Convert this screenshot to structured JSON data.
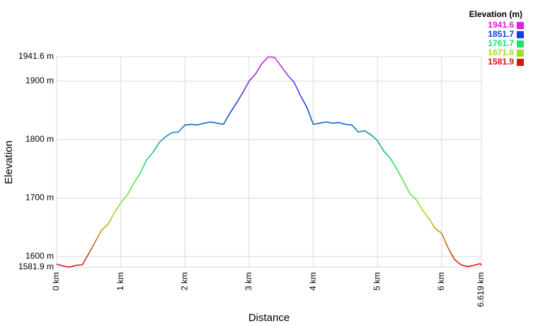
{
  "chart_data": {
    "type": "line",
    "xlabel": "Distance",
    "ylabel": "Elevation",
    "legend_title": "Elevation (m)",
    "xlim": [
      0,
      6.619
    ],
    "ylim": [
      1581.9,
      1941.6
    ],
    "xticks": [
      {
        "value": 0,
        "label": "0 km"
      },
      {
        "value": 1,
        "label": "1 km"
      },
      {
        "value": 2,
        "label": "2 km"
      },
      {
        "value": 3,
        "label": "3 km"
      },
      {
        "value": 4,
        "label": "4 km"
      },
      {
        "value": 5,
        "label": "5 km"
      },
      {
        "value": 6,
        "label": "6 km"
      },
      {
        "value": 6.619,
        "label": "6.619 km"
      }
    ],
    "yticks": [
      {
        "value": 1581.9,
        "label": "1581.9 m"
      },
      {
        "value": 1600,
        "label": "1600 m"
      },
      {
        "value": 1700,
        "label": "1700 m"
      },
      {
        "value": 1800,
        "label": "1800 m"
      },
      {
        "value": 1900,
        "label": "1900 m"
      },
      {
        "value": 1941.6,
        "label": "1941.6 m"
      }
    ],
    "grid": true,
    "color_scale": [
      {
        "value": 1941.6,
        "color": "#e020e0"
      },
      {
        "value": 1851.7,
        "color": "#1040e0"
      },
      {
        "value": 1761.7,
        "color": "#20e070"
      },
      {
        "value": 1671.8,
        "color": "#a0e020"
      },
      {
        "value": 1581.9,
        "color": "#e01010"
      }
    ],
    "x": [
      0,
      0.1,
      0.2,
      0.3,
      0.4,
      0.5,
      0.6,
      0.7,
      0.8,
      0.9,
      1.0,
      1.1,
      1.2,
      1.3,
      1.4,
      1.5,
      1.6,
      1.7,
      1.8,
      1.9,
      2.0,
      2.1,
      2.2,
      2.3,
      2.4,
      2.5,
      2.6,
      2.7,
      2.8,
      2.9,
      3.0,
      3.1,
      3.2,
      3.3,
      3.4,
      3.5,
      3.6,
      3.7,
      3.8,
      3.9,
      4.0,
      4.1,
      4.2,
      4.3,
      4.4,
      4.5,
      4.6,
      4.7,
      4.8,
      4.9,
      5.0,
      5.1,
      5.2,
      5.3,
      5.4,
      5.5,
      5.6,
      5.7,
      5.8,
      5.9,
      6.0,
      6.1,
      6.2,
      6.3,
      6.4,
      6.5,
      6.6,
      6.619
    ],
    "values": [
      1587,
      1584,
      1581.9,
      1585,
      1586,
      1605,
      1625,
      1645,
      1655,
      1675,
      1692,
      1705,
      1725,
      1742,
      1765,
      1778,
      1795,
      1805,
      1812,
      1813,
      1825,
      1826,
      1825,
      1828,
      1830,
      1828,
      1826,
      1845,
      1862,
      1880,
      1900,
      1912,
      1930,
      1941.6,
      1940,
      1925,
      1910,
      1898,
      1875,
      1855,
      1826,
      1828,
      1830,
      1828,
      1829,
      1826,
      1825,
      1813,
      1815,
      1808,
      1798,
      1780,
      1768,
      1750,
      1730,
      1708,
      1698,
      1680,
      1665,
      1648,
      1640,
      1615,
      1595,
      1586,
      1583,
      1585,
      1588,
      1585
    ]
  }
}
